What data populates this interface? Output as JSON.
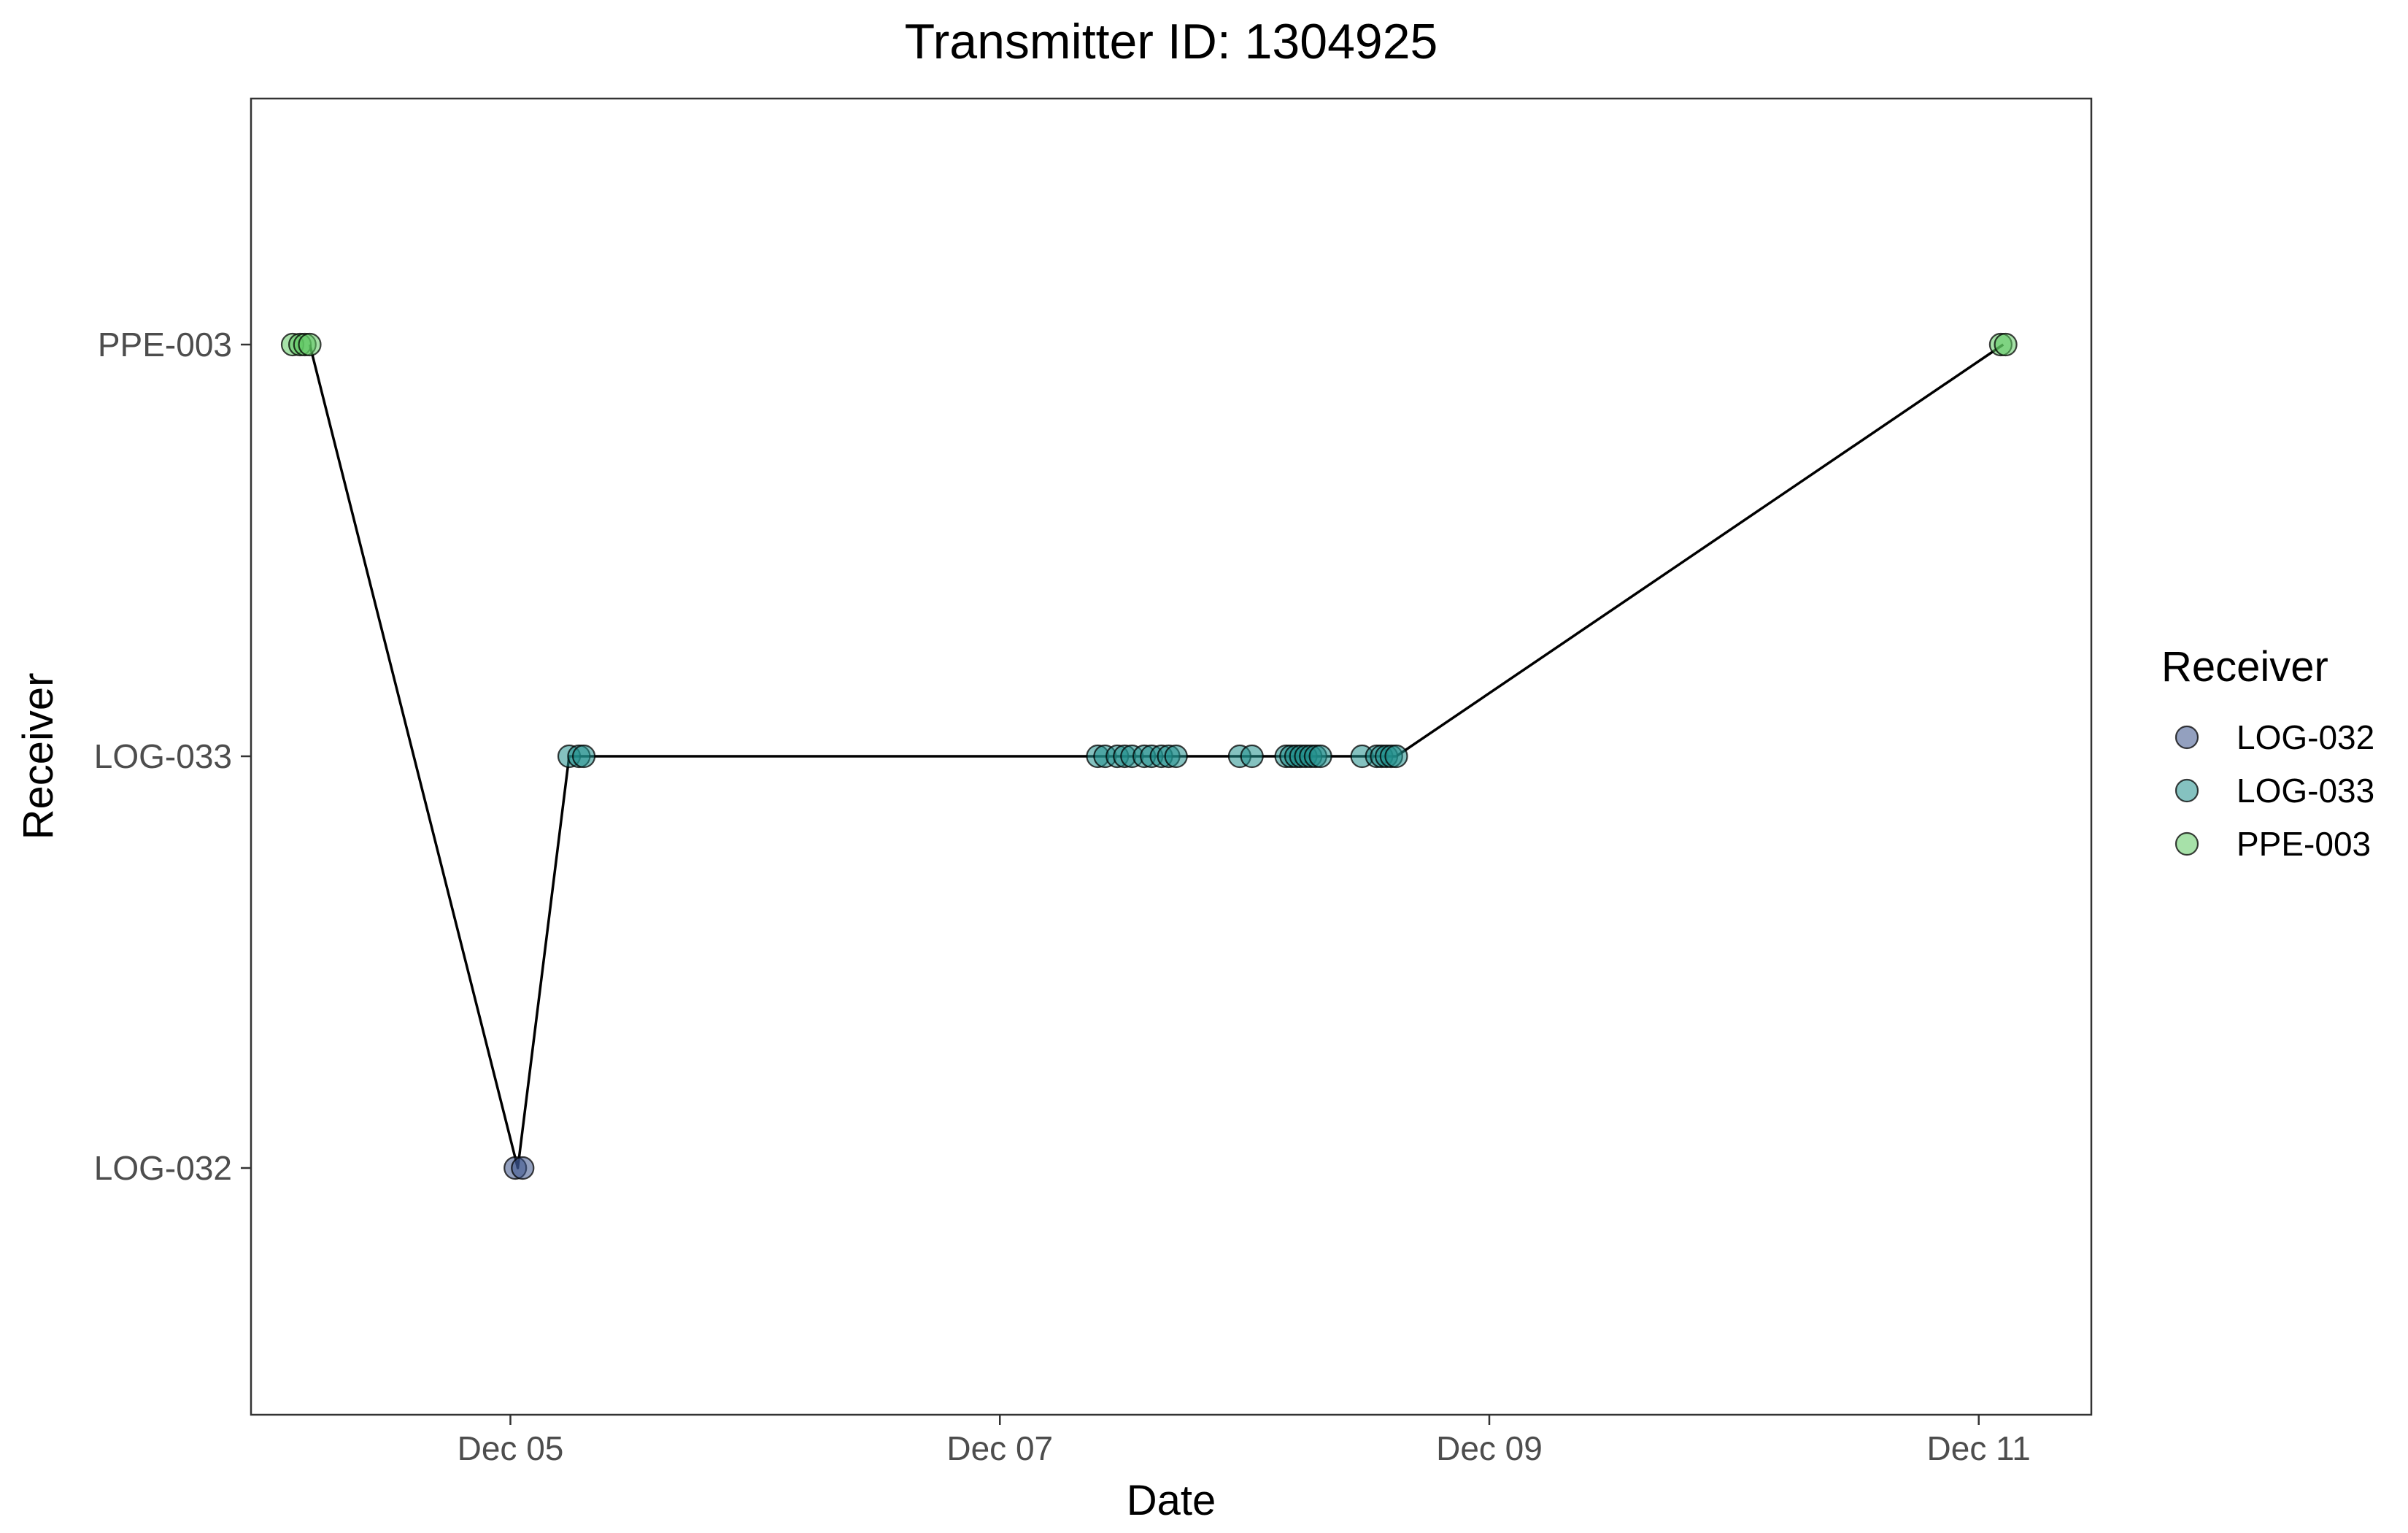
{
  "chart_data": {
    "type": "scatter",
    "title": "Transmitter ID: 1304925",
    "xlabel": "Date",
    "ylabel": "Receiver",
    "x_ticks": [
      "Dec 05",
      "Dec 07",
      "Dec 09",
      "Dec 11"
    ],
    "y_categories": [
      "LOG-032",
      "LOG-033",
      "PPE-003"
    ],
    "legend": {
      "title": "Receiver",
      "position": "right",
      "entries": [
        {
          "name": "LOG-032",
          "color": "#3b528b"
        },
        {
          "name": "LOG-033",
          "color": "#21908c"
        },
        {
          "name": "PPE-003",
          "color": "#5ec962"
        }
      ]
    },
    "grid": false,
    "point_alpha": 0.55,
    "line_color": "#000000",
    "x_unit": "days of December (fractional)",
    "xlim": [
      3.94,
      11.46
    ],
    "path": [
      {
        "x": 4.18,
        "receiver": "PPE-003"
      },
      {
        "x": 5.03,
        "receiver": "LOG-032"
      },
      {
        "x": 5.24,
        "receiver": "LOG-033"
      },
      {
        "x": 8.62,
        "receiver": "LOG-033"
      },
      {
        "x": 11.1,
        "receiver": "PPE-003"
      }
    ],
    "points": [
      {
        "x": 4.11,
        "receiver": "PPE-003"
      },
      {
        "x": 4.14,
        "receiver": "PPE-003"
      },
      {
        "x": 4.16,
        "receiver": "PPE-003"
      },
      {
        "x": 4.18,
        "receiver": "PPE-003"
      },
      {
        "x": 5.02,
        "receiver": "LOG-032"
      },
      {
        "x": 5.05,
        "receiver": "LOG-032"
      },
      {
        "x": 5.24,
        "receiver": "LOG-033"
      },
      {
        "x": 5.28,
        "receiver": "LOG-033"
      },
      {
        "x": 5.3,
        "receiver": "LOG-033"
      },
      {
        "x": 7.4,
        "receiver": "LOG-033"
      },
      {
        "x": 7.43,
        "receiver": "LOG-033"
      },
      {
        "x": 7.48,
        "receiver": "LOG-033"
      },
      {
        "x": 7.51,
        "receiver": "LOG-033"
      },
      {
        "x": 7.54,
        "receiver": "LOG-033"
      },
      {
        "x": 7.59,
        "receiver": "LOG-033"
      },
      {
        "x": 7.62,
        "receiver": "LOG-033"
      },
      {
        "x": 7.66,
        "receiver": "LOG-033"
      },
      {
        "x": 7.69,
        "receiver": "LOG-033"
      },
      {
        "x": 7.72,
        "receiver": "LOG-033"
      },
      {
        "x": 7.98,
        "receiver": "LOG-033"
      },
      {
        "x": 8.03,
        "receiver": "LOG-033"
      },
      {
        "x": 8.17,
        "receiver": "LOG-033"
      },
      {
        "x": 8.19,
        "receiver": "LOG-033"
      },
      {
        "x": 8.21,
        "receiver": "LOG-033"
      },
      {
        "x": 8.23,
        "receiver": "LOG-033"
      },
      {
        "x": 8.25,
        "receiver": "LOG-033"
      },
      {
        "x": 8.27,
        "receiver": "LOG-033"
      },
      {
        "x": 8.29,
        "receiver": "LOG-033"
      },
      {
        "x": 8.31,
        "receiver": "LOG-033"
      },
      {
        "x": 8.48,
        "receiver": "LOG-033"
      },
      {
        "x": 8.54,
        "receiver": "LOG-033"
      },
      {
        "x": 8.56,
        "receiver": "LOG-033"
      },
      {
        "x": 8.58,
        "receiver": "LOG-033"
      },
      {
        "x": 8.6,
        "receiver": "LOG-033"
      },
      {
        "x": 8.62,
        "receiver": "LOG-033"
      },
      {
        "x": 11.09,
        "receiver": "PPE-003"
      },
      {
        "x": 11.11,
        "receiver": "PPE-003"
      }
    ]
  }
}
